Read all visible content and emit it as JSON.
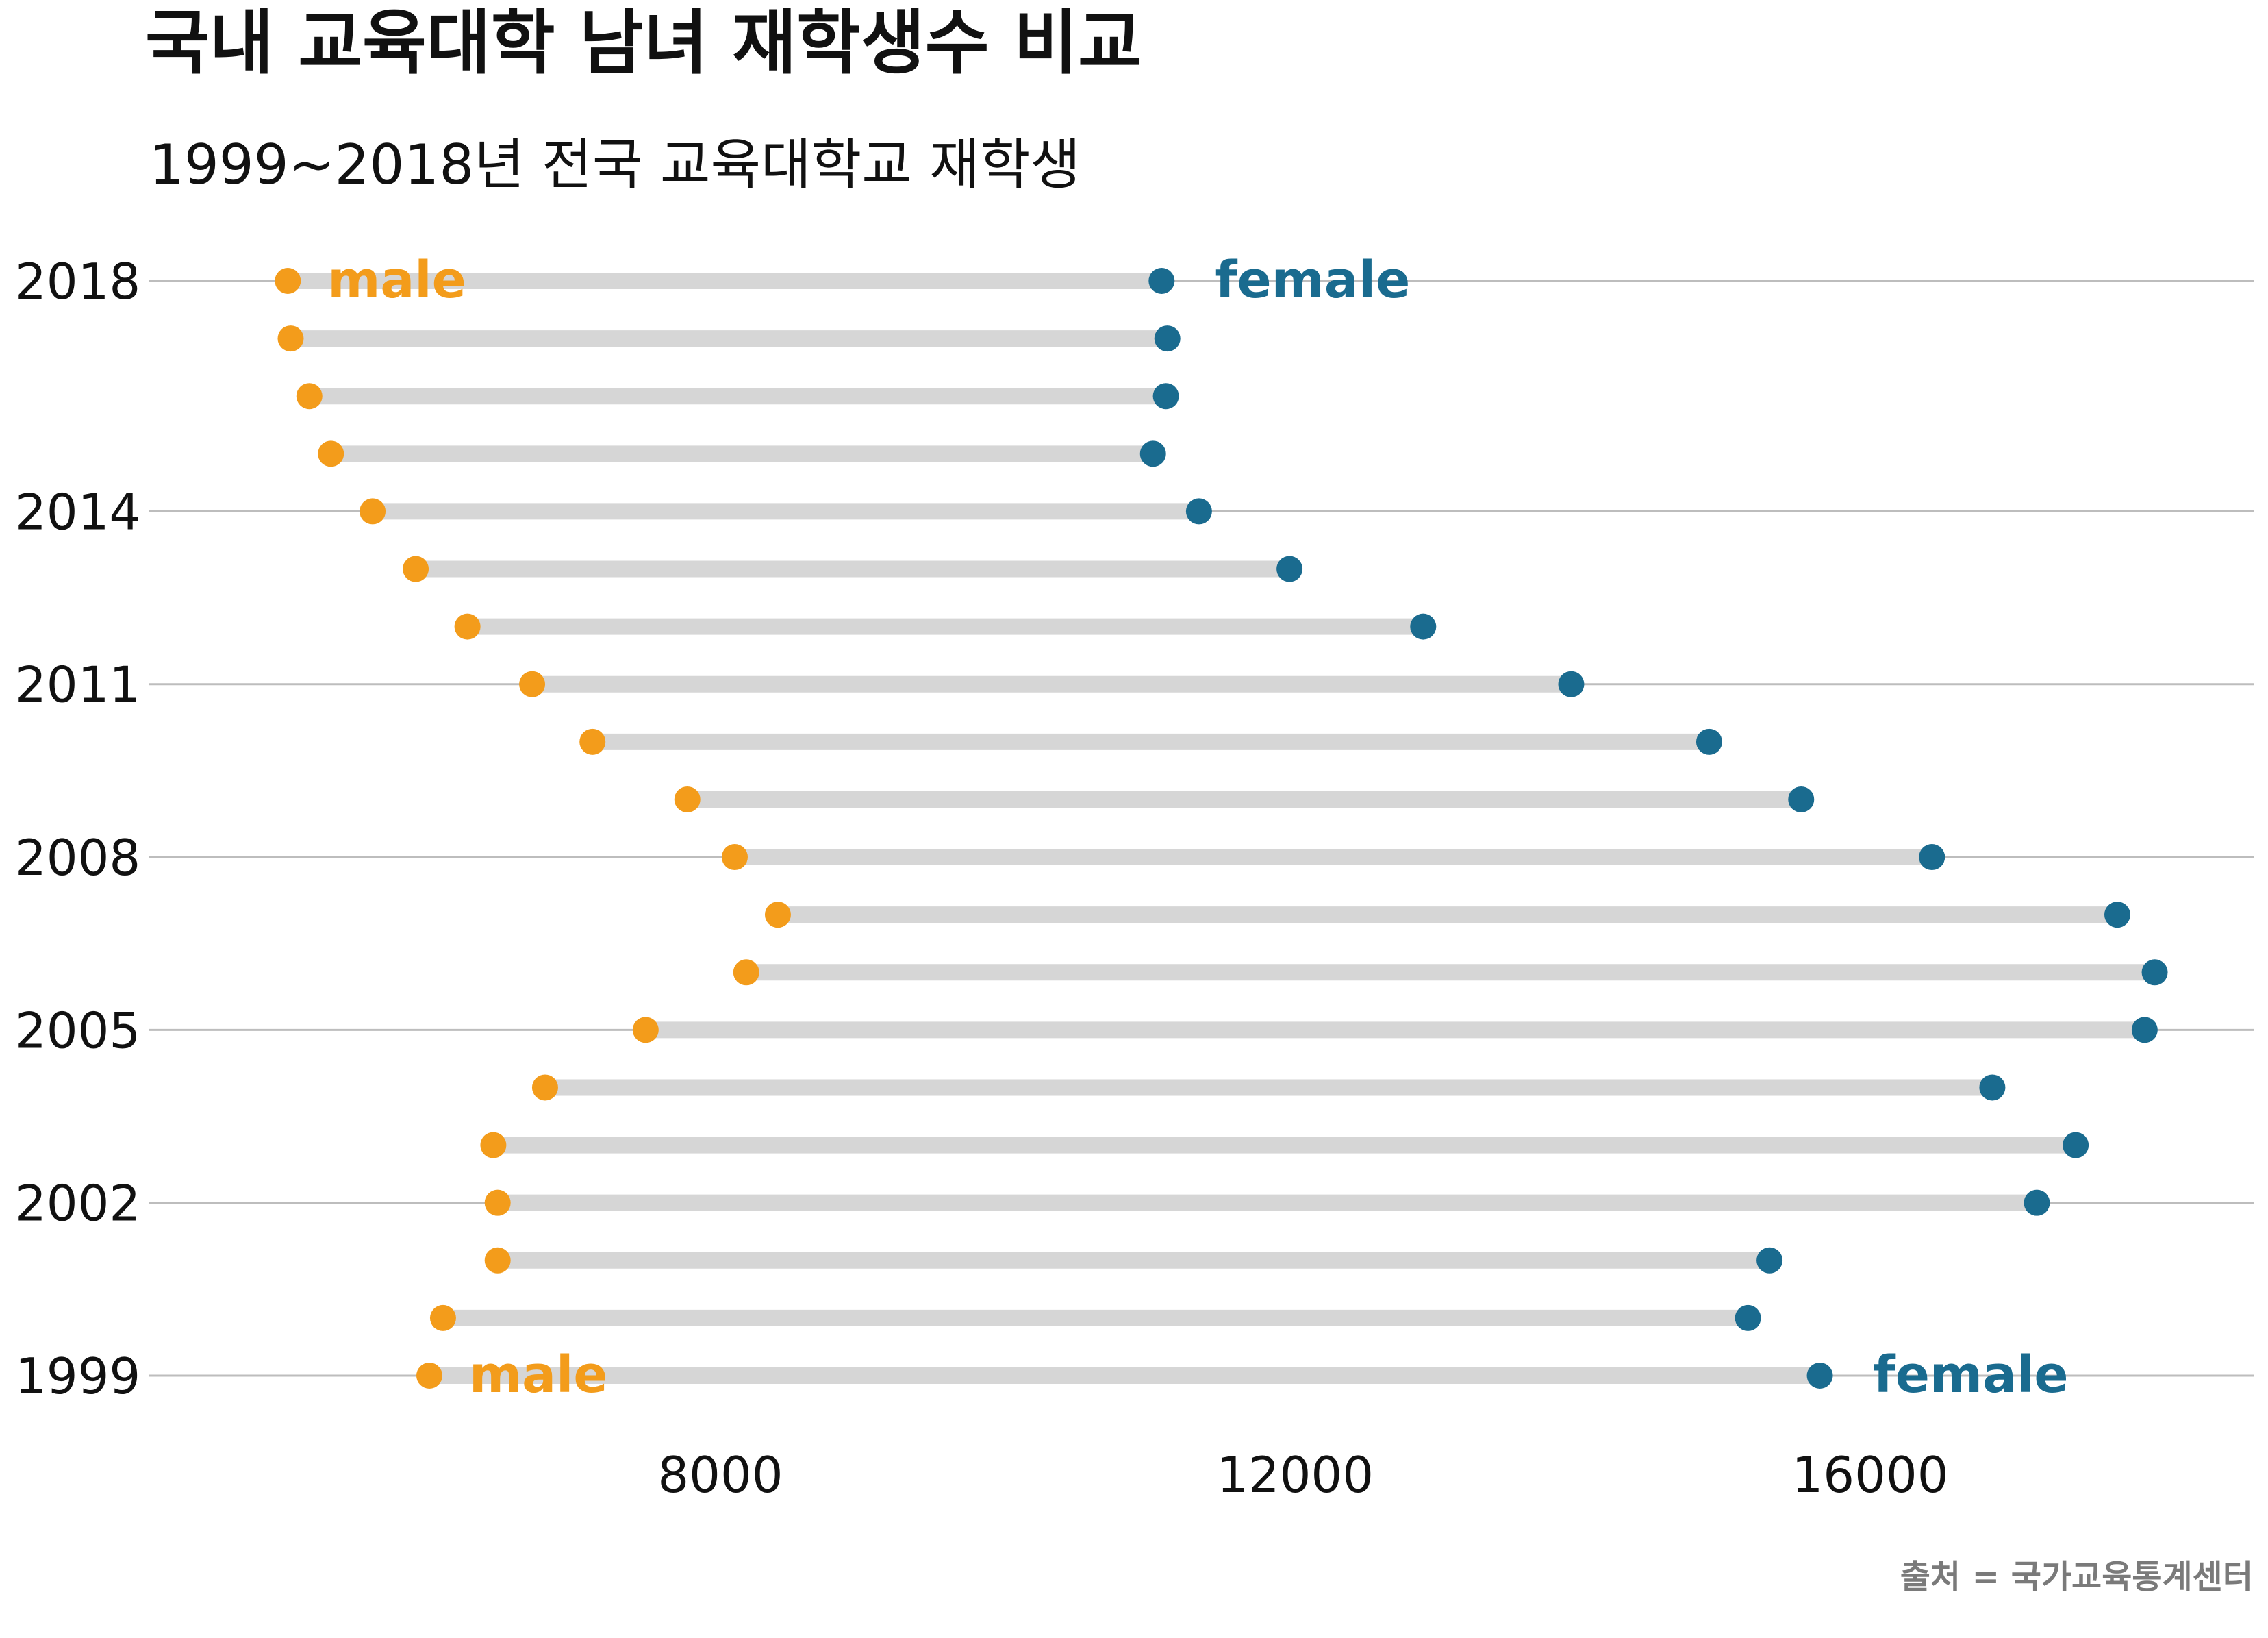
{
  "title": "국내 교육대학 남녀 재학생수 비교",
  "subtitle": "1999~2018년 전국 교육대학교 재학생",
  "caption": "출처 = 국가교육통계센터",
  "colors": {
    "male": "#F39C1B",
    "female": "#1A6B8F",
    "segment": "#D6D6D6",
    "grid": "#BDBDBD",
    "text": "#111111",
    "caption": "#7A7A7A"
  },
  "chart_data": {
    "type": "dumbbell",
    "title": "국내 교육대학 남녀 재학생수 비교",
    "subtitle": "1999~2018년 전국 교육대학교 재학생",
    "xlabel": "",
    "ylabel": "",
    "xlim": [
      4000,
      18600
    ],
    "x_ticks": [
      "8000",
      "12000",
      "16000"
    ],
    "x_tick_values": [
      8000,
      12000,
      16000
    ],
    "y_ticks": [
      "2018",
      "2014",
      "2011",
      "2008",
      "2005",
      "2002",
      "1999"
    ],
    "y_tick_values": [
      2018,
      2014,
      2011,
      2008,
      2005,
      2002,
      1999
    ],
    "series_labels": {
      "male": "male",
      "female": "female"
    },
    "label_years": [
      2018,
      1999
    ],
    "years": [
      1999,
      2000,
      2001,
      2002,
      2003,
      2004,
      2005,
      2006,
      2007,
      2008,
      2009,
      2010,
      2011,
      2012,
      2013,
      2014,
      2015,
      2016,
      2017,
      2018
    ],
    "male": [
      5975,
      6070,
      6450,
      6450,
      6420,
      6780,
      7480,
      8180,
      8400,
      8100,
      7770,
      7110,
      6690,
      6240,
      5880,
      5580,
      5290,
      5140,
      5010,
      4990
    ],
    "female": [
      15650,
      15150,
      15300,
      17160,
      17430,
      16850,
      17910,
      17980,
      17720,
      16430,
      15520,
      14880,
      13920,
      12890,
      11960,
      11330,
      11010,
      11100,
      11110,
      11070
    ],
    "grid": true
  }
}
